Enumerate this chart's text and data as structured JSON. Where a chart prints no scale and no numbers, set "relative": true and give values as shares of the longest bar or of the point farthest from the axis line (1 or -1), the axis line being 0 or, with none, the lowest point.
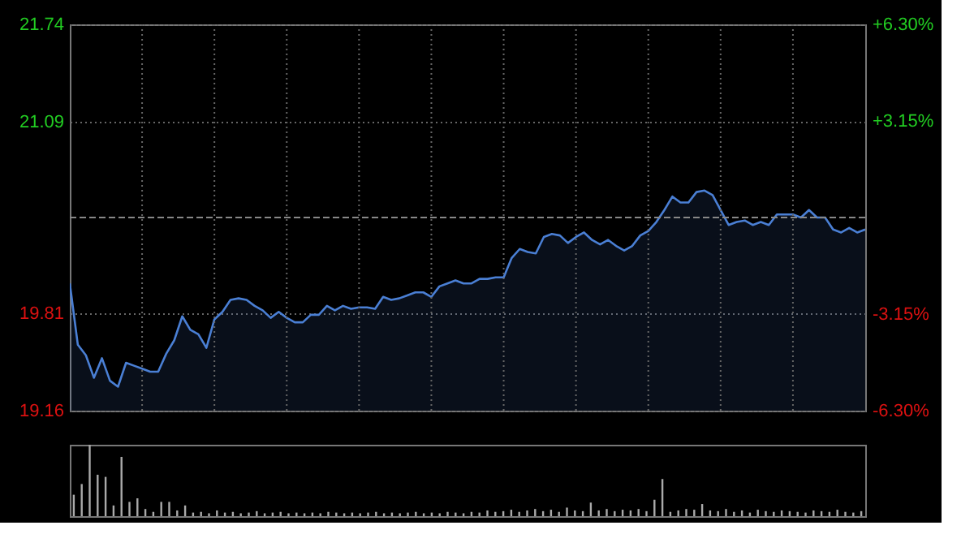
{
  "chart_data": [
    {
      "type": "area",
      "categories": [
        null,
        null,
        null,
        null,
        null,
        null,
        null,
        null,
        null,
        null,
        null,
        null,
        null,
        null,
        null,
        null,
        null,
        null,
        null,
        null,
        null,
        null,
        null,
        null,
        null,
        null,
        null,
        null,
        null,
        null,
        null,
        null,
        null,
        null,
        null,
        null,
        null,
        null,
        null,
        null,
        null,
        null,
        null,
        null,
        null,
        null,
        null,
        null,
        null,
        null,
        null,
        null,
        null,
        null,
        null,
        null,
        null,
        null,
        null,
        null,
        null,
        null,
        null,
        null,
        null,
        null,
        null,
        null,
        null,
        null,
        null,
        null,
        null,
        null,
        null,
        null,
        null,
        null,
        null,
        null,
        null,
        null,
        null,
        null,
        null,
        null,
        null,
        null,
        null,
        null,
        null,
        null,
        null,
        null,
        null,
        null,
        null,
        null,
        null,
        null
      ],
      "series": [
        {
          "color": "#4a7fd4",
          "values": [
            20.01,
            19.6,
            19.53,
            19.38,
            19.51,
            19.36,
            19.32,
            19.48,
            19.46,
            19.44,
            19.42,
            19.42,
            19.54,
            19.63,
            19.79,
            19.7,
            19.67,
            19.58,
            19.77,
            19.82,
            19.9,
            19.91,
            19.9,
            19.86,
            19.83,
            19.78,
            19.82,
            19.78,
            19.75,
            19.75,
            19.8,
            19.8,
            19.86,
            19.83,
            19.86,
            19.84,
            19.85,
            19.85,
            19.84,
            19.92,
            19.9,
            19.91,
            19.93,
            19.95,
            19.95,
            19.92,
            19.99,
            20.01,
            20.03,
            20.01,
            20.01,
            20.04,
            20.04,
            20.05,
            20.05,
            20.18,
            20.24,
            20.22,
            20.21,
            20.32,
            20.34,
            20.33,
            20.28,
            20.32,
            20.35,
            20.3,
            20.27,
            20.3,
            20.26,
            20.23,
            20.26,
            20.33,
            20.36,
            20.42,
            20.5,
            20.59,
            20.55,
            20.55,
            20.62,
            20.63,
            20.6,
            20.5,
            20.4,
            20.42,
            20.43,
            20.4,
            20.42,
            20.4,
            20.47,
            20.47,
            20.47,
            20.45,
            20.5,
            20.45,
            20.45,
            20.37,
            20.35,
            20.38,
            20.35,
            20.37
          ]
        }
      ],
      "ylim": [
        19.16,
        21.74
      ],
      "yticks": [
        19.16,
        19.81,
        21.09,
        21.74
      ],
      "y2lim": [
        -6.3,
        6.3
      ],
      "y2ticks": [
        {
          "value": -6.3,
          "label": "-6.30%"
        },
        {
          "value": -3.15,
          "label": "-3.15%"
        },
        {
          "value": 3.15,
          "label": "+3.15%"
        },
        {
          "value": 6.3,
          "label": "+6.30%"
        }
      ],
      "ref_lines": [
        {
          "axis": "y",
          "value": 20.45,
          "line_style": "dashed",
          "color": "#888888"
        }
      ],
      "grid": true
    },
    {
      "type": "bar",
      "relative": true,
      "categories": [
        null,
        null,
        null,
        null,
        null,
        null,
        null,
        null,
        null,
        null,
        null,
        null,
        null,
        null,
        null,
        null,
        null,
        null,
        null,
        null,
        null,
        null,
        null,
        null,
        null,
        null,
        null,
        null,
        null,
        null,
        null,
        null,
        null,
        null,
        null,
        null,
        null,
        null,
        null,
        null,
        null,
        null,
        null,
        null,
        null,
        null,
        null,
        null,
        null,
        null,
        null,
        null,
        null,
        null,
        null,
        null,
        null,
        null,
        null,
        null,
        null,
        null,
        null,
        null,
        null,
        null,
        null,
        null,
        null,
        null,
        null,
        null,
        null,
        null,
        null,
        null,
        null,
        null,
        null,
        null,
        null,
        null,
        null,
        null,
        null,
        null,
        null,
        null,
        null,
        null,
        null,
        null,
        null,
        null,
        null,
        null,
        null,
        null,
        null,
        null
      ],
      "color": "#aaaaaa",
      "values": [
        0.3,
        0.45,
        1.0,
        0.58,
        0.55,
        0.15,
        0.83,
        0.2,
        0.25,
        0.1,
        0.06,
        0.2,
        0.2,
        0.08,
        0.15,
        0.05,
        0.06,
        0.04,
        0.08,
        0.05,
        0.06,
        0.04,
        0.05,
        0.07,
        0.04,
        0.05,
        0.06,
        0.04,
        0.05,
        0.04,
        0.05,
        0.04,
        0.06,
        0.05,
        0.04,
        0.05,
        0.04,
        0.05,
        0.06,
        0.04,
        0.05,
        0.04,
        0.05,
        0.06,
        0.04,
        0.05,
        0.04,
        0.06,
        0.05,
        0.04,
        0.06,
        0.05,
        0.08,
        0.06,
        0.07,
        0.09,
        0.06,
        0.08,
        0.1,
        0.07,
        0.09,
        0.06,
        0.12,
        0.08,
        0.07,
        0.19,
        0.08,
        0.1,
        0.07,
        0.09,
        0.08,
        0.1,
        0.07,
        0.23,
        0.52,
        0.06,
        0.08,
        0.1,
        0.09,
        0.17,
        0.08,
        0.07,
        0.1,
        0.06,
        0.08,
        0.05,
        0.09,
        0.07,
        0.06,
        0.08,
        0.07,
        0.06,
        0.05,
        0.08,
        0.07,
        0.06,
        0.09,
        0.06,
        0.05,
        0.07
      ]
    }
  ]
}
